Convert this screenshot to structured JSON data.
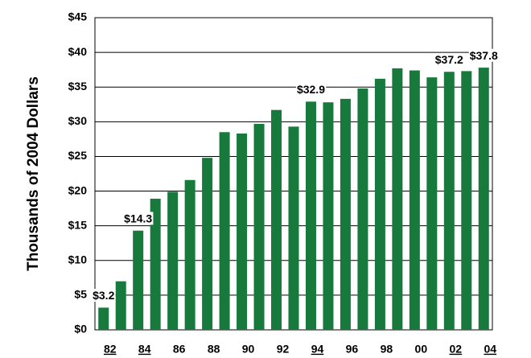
{
  "chart_data": {
    "type": "bar",
    "y_label": "Thousands of 2004 Dollars",
    "categories": [
      "82",
      null,
      "84",
      null,
      "86",
      null,
      "88",
      null,
      "90",
      null,
      "92",
      null,
      "94",
      null,
      "96",
      null,
      "98",
      null,
      "00",
      null,
      "02",
      null,
      "04"
    ],
    "values": [
      3.2,
      7.0,
      14.3,
      18.9,
      19.9,
      21.6,
      24.8,
      28.5,
      28.3,
      29.7,
      31.7,
      29.3,
      32.9,
      32.8,
      33.3,
      34.8,
      36.2,
      37.7,
      37.4,
      36.4,
      37.2,
      37.3,
      37.8
    ],
    "value_labels": [
      "$3.2",
      null,
      "$14.3",
      null,
      null,
      null,
      null,
      null,
      null,
      null,
      null,
      null,
      "$32.9",
      null,
      null,
      null,
      null,
      null,
      null,
      null,
      "$37.2",
      null,
      "$37.8"
    ],
    "color": "#177a3c",
    "ylim": [
      0,
      45
    ],
    "yticks": [
      {
        "value": 0,
        "label": "$0"
      },
      {
        "value": 5,
        "label": "$5"
      },
      {
        "value": 10,
        "label": "$10"
      },
      {
        "value": 15,
        "label": "$15"
      },
      {
        "value": 20,
        "label": "$20"
      },
      {
        "value": 25,
        "label": "$25"
      },
      {
        "value": 30,
        "label": "$30"
      },
      {
        "value": 35,
        "label": "$35"
      },
      {
        "value": 40,
        "label": "$40"
      },
      {
        "value": 45,
        "label": "$45"
      }
    ],
    "grid": true
  }
}
